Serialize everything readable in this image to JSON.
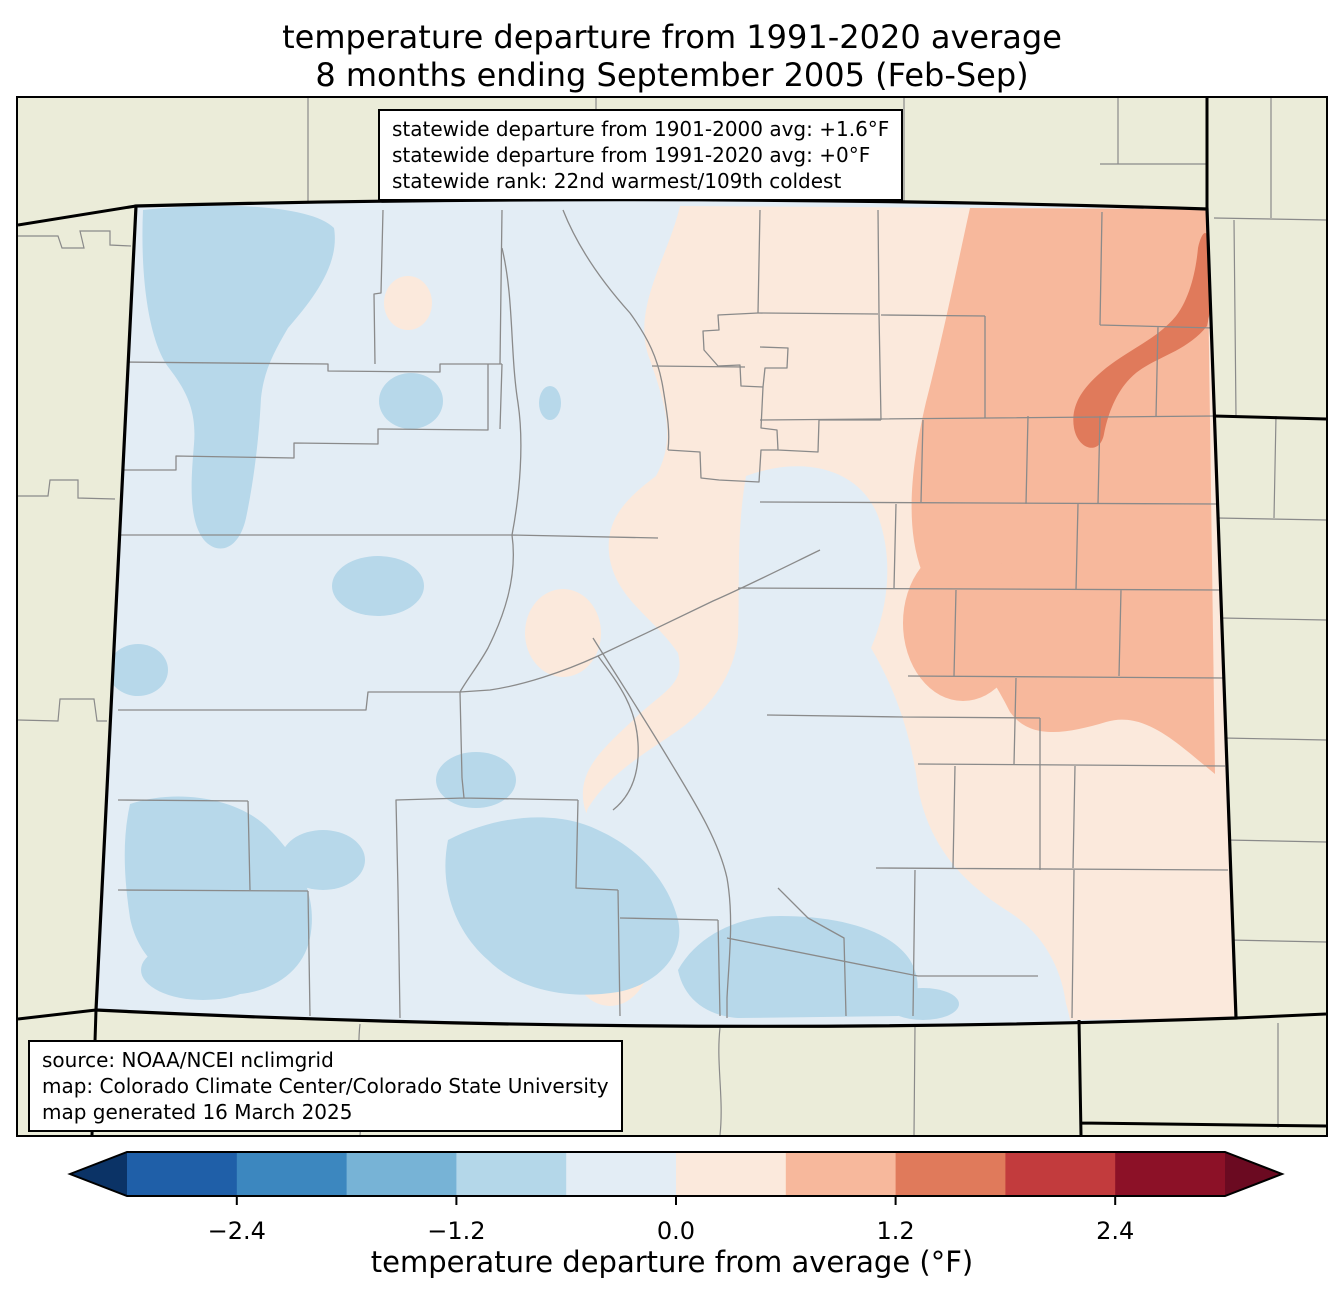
{
  "title": {
    "line1": "temperature departure from 1991-2020 average",
    "line2": "8 months ending September 2005 (Feb-Sep)"
  },
  "stats_box": {
    "lines": [
      "statewide departure from 1901-2000 avg: +1.6°F",
      "statewide departure from 1991-2020 avg: +0°F",
      "statewide rank: 22nd warmest/109th coldest"
    ]
  },
  "source_box": {
    "lines": [
      "source: NOAA/NCEI nclimgrid",
      "map: Colorado Climate Center/Colorado State University",
      "map generated 16 March 2025"
    ]
  },
  "colorbar": {
    "label": "temperature departure from average (°F)",
    "range": [
      -3.0,
      3.0
    ],
    "segment_step": 0.6,
    "ticks": [
      {
        "value": -2.4,
        "label": "−2.4"
      },
      {
        "value": -1.2,
        "label": "−1.2"
      },
      {
        "value": 0.0,
        "label": "0.0"
      },
      {
        "value": 1.2,
        "label": "1.2"
      },
      {
        "value": 2.4,
        "label": "2.4"
      }
    ],
    "segment_colors": [
      "#1f5fa8",
      "#3c87bf",
      "#77b3d6",
      "#b4d7e9",
      "#e3edf5",
      "#fbe9dc",
      "#f7b89c",
      "#e07a5b",
      "#c23b3d",
      "#8c1127"
    ],
    "arrow_left_color": "#0b3366",
    "arrow_right_color": "#6b0a21"
  },
  "map": {
    "depicts": "Colorado statewide temperature-departure contour map with county boundaries and surrounding states",
    "legend_units": "°F departure from average"
  },
  "palette": {
    "outside_land": "#ebecd9",
    "pale_blue": "#e3edf5",
    "medium_blue": "#b7d8ea",
    "pale_pink": "#fbe9dc",
    "light_orange": "#f7b89c",
    "dark_orange": "#e07a5b",
    "county_line": "#8a8a8a",
    "state_line": "#000000",
    "text": "#000000"
  }
}
